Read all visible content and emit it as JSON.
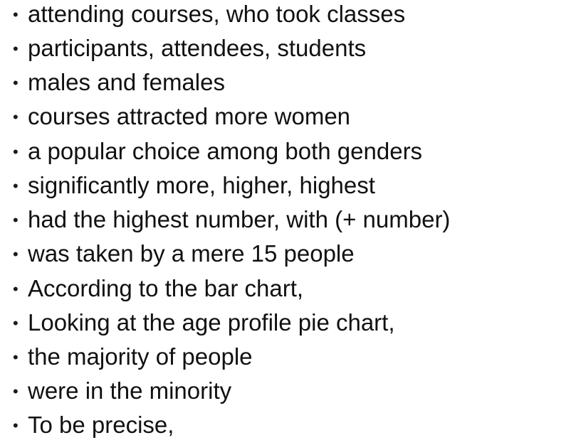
{
  "bullet_glyph": "•",
  "phrases": [
    "attending courses, who took classes",
    "participants, attendees, students",
    "males and females",
    "courses attracted more women",
    "a popular choice among both genders",
    "significantly more, higher, highest",
    "had the highest number, with (+ number)",
    "was taken by a mere 15 people",
    "According to the bar chart,",
    "Looking at the age profile pie chart,",
    "the majority of people",
    "were in the minority",
    "To be precise,"
  ]
}
